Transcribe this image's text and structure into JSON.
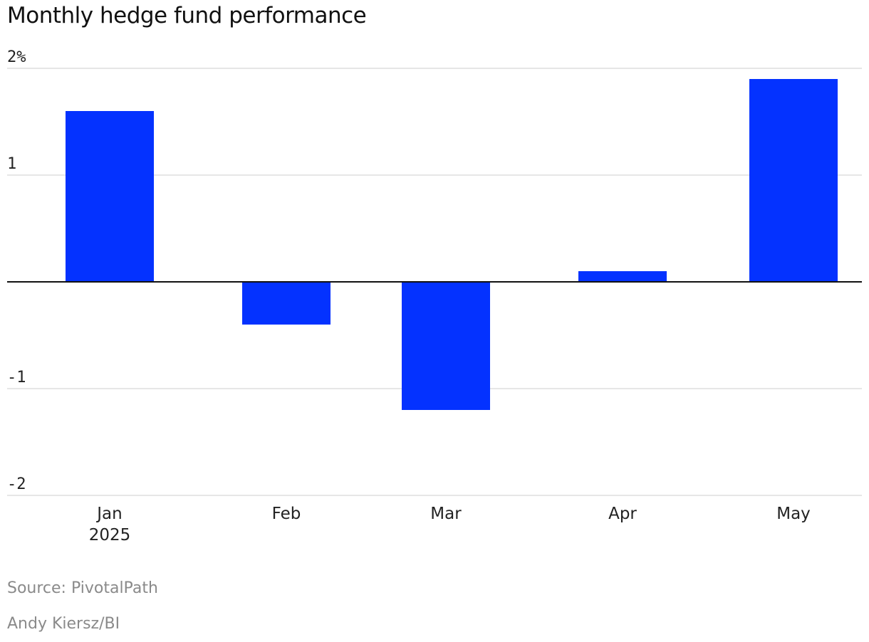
{
  "chart_data": {
    "type": "bar",
    "title": "Monthly hedge fund performance",
    "categories": [
      "Jan",
      "Feb",
      "Mar",
      "Apr",
      "May"
    ],
    "category_sublabels": [
      "2025",
      "",
      "",
      "",
      ""
    ],
    "values": [
      1.6,
      -0.4,
      -1.2,
      0.1,
      1.9
    ],
    "ylim": [
      -2,
      2
    ],
    "y_ticks": [
      {
        "value": 2,
        "label": "2%"
      },
      {
        "value": 1,
        "label": "1"
      },
      {
        "value": -1,
        "label": "-1"
      },
      {
        "value": -2,
        "label": "-2"
      }
    ],
    "grid": true,
    "colors": {
      "bar": "#0432FF",
      "grid": "#dddddd",
      "zero_line": "#111111",
      "tick_text": "#222222"
    }
  },
  "footer": {
    "source": "Source: PivotalPath",
    "credit": "Andy Kiersz/BI"
  }
}
